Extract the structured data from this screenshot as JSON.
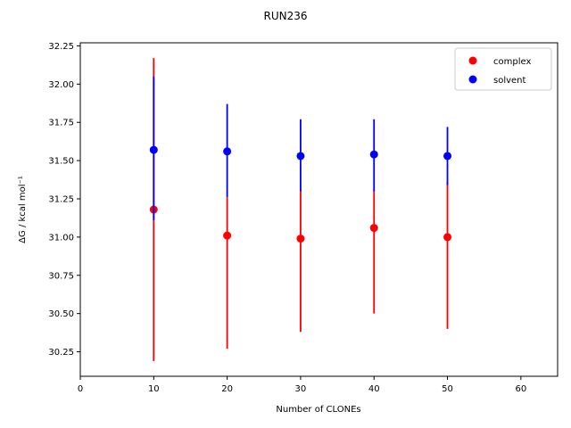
{
  "chart_data": {
    "type": "scatter",
    "title": "RUN236",
    "xlabel": "Number of CLONEs",
    "ylabel": "ΔG / kcal mol⁻¹",
    "xlim": [
      0,
      65
    ],
    "ylim": [
      30.09,
      32.27
    ],
    "xticks": [
      0,
      10,
      20,
      30,
      40,
      50,
      60
    ],
    "yticks": [
      30.25,
      30.5,
      30.75,
      31.0,
      31.25,
      31.5,
      31.75,
      32.0,
      32.25
    ],
    "grid": false,
    "legend_position": "top-right",
    "series": [
      {
        "name": "complex",
        "color": "#ff0000",
        "x": [
          10,
          20,
          30,
          40,
          50
        ],
        "y": [
          31.18,
          31.01,
          30.99,
          31.06,
          31.0
        ],
        "err_low": [
          30.19,
          30.27,
          30.38,
          30.5,
          30.4
        ],
        "err_high": [
          32.17,
          31.26,
          31.31,
          31.31,
          31.36
        ]
      },
      {
        "name": "solvent",
        "color": "#0000ff",
        "x": [
          10,
          20,
          30,
          40,
          50
        ],
        "y": [
          31.57,
          31.56,
          31.53,
          31.54,
          31.53
        ],
        "err_low": [
          31.11,
          31.26,
          31.3,
          31.3,
          31.34
        ],
        "err_high": [
          32.05,
          31.87,
          31.77,
          31.77,
          31.72
        ]
      }
    ]
  }
}
